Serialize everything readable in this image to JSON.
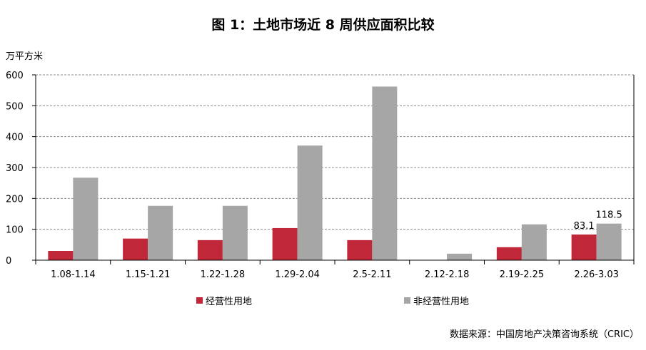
{
  "title": "图 1：土地市场近 8 周供应面积比较",
  "unit_label": "万平方米",
  "source": "数据来源：中国房地产决策咨询系统（CRIC）",
  "chart_data": {
    "type": "bar",
    "categories": [
      "1.08-1.14",
      "1.15-1.21",
      "1.22-1.28",
      "1.29-2.04",
      "2.5-2.11",
      "2.12-2.18",
      "2.19-2.25",
      "2.26-3.03"
    ],
    "series": [
      {
        "name": "经营性用地",
        "color": "#C0283A",
        "values": [
          30,
          70,
          65,
          104,
          65,
          0,
          42,
          83.1
        ]
      },
      {
        "name": "非经营性用地",
        "color": "#A6A6A6",
        "values": [
          267,
          176,
          176,
          371,
          562,
          21,
          116,
          118.5
        ]
      }
    ],
    "data_labels": [
      {
        "series": 0,
        "index": 7,
        "text": "83.1"
      },
      {
        "series": 1,
        "index": 7,
        "text": "118.5"
      }
    ],
    "ylim": [
      0,
      600
    ],
    "yticks": [
      0,
      100,
      200,
      300,
      400,
      500,
      600
    ],
    "grid": true,
    "legend_position": "bottom"
  }
}
